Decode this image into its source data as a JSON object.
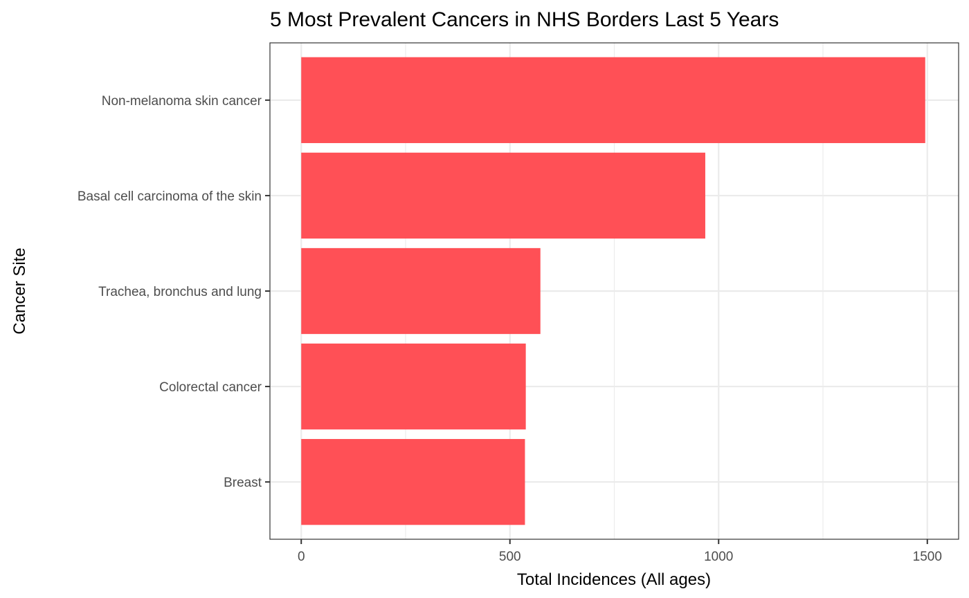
{
  "chart_data": {
    "type": "bar",
    "orientation": "horizontal",
    "title": "5 Most Prevalent Cancers in NHS Borders Last 5 Years",
    "xlabel": "Total Incidences (All ages)",
    "ylabel": "Cancer Site",
    "categories": [
      "Non-melanoma skin cancer",
      "Basal cell carcinoma of the skin",
      "Trachea, bronchus and lung",
      "Colorectal cancer",
      "Breast"
    ],
    "values": [
      1495,
      968,
      573,
      538,
      536
    ],
    "xlim": [
      -75,
      1575
    ],
    "x_ticks": [
      0,
      500,
      1000,
      1500
    ],
    "x_minor_ticks": [
      250,
      750,
      1250
    ],
    "grid": true,
    "legend": "none",
    "bar_color": "#ff4c53"
  }
}
